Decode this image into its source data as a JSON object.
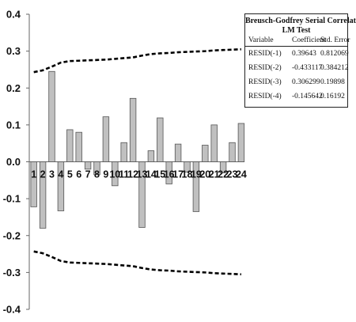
{
  "chart_data": {
    "type": "bar",
    "categories": [
      "1",
      "2",
      "3",
      "4",
      "5",
      "6",
      "7",
      "8",
      "9",
      "10",
      "11",
      "12",
      "13",
      "14",
      "15",
      "16",
      "17",
      "18",
      "19",
      "20",
      "21",
      "22",
      "23",
      "24"
    ],
    "series": [
      {
        "values": [
          -0.122,
          -0.18,
          0.245,
          -0.133,
          0.087,
          0.08,
          -0.02,
          -0.035,
          0.122,
          -0.065,
          0.052,
          0.172,
          -0.178,
          0.03,
          0.119,
          -0.06,
          0.048,
          -0.028,
          -0.135,
          0.045,
          0.1,
          -0.03,
          0.052,
          0.104
        ]
      }
    ],
    "upper_bound": [
      0.243,
      0.248,
      0.258,
      0.269,
      0.273,
      0.274,
      0.275,
      0.276,
      0.277,
      0.279,
      0.281,
      0.283,
      0.288,
      0.292,
      0.294,
      0.295,
      0.297,
      0.298,
      0.299,
      0.3,
      0.302,
      0.303,
      0.304,
      0.305
    ],
    "lower_bound": [
      -0.243,
      -0.248,
      -0.258,
      -0.269,
      -0.273,
      -0.274,
      -0.275,
      -0.276,
      -0.277,
      -0.279,
      -0.281,
      -0.283,
      -0.288,
      -0.292,
      -0.294,
      -0.295,
      -0.297,
      -0.298,
      -0.299,
      -0.3,
      -0.302,
      -0.303,
      -0.304,
      -0.305
    ],
    "ylim": [
      -0.4,
      0.4
    ],
    "yticks": [
      0.4,
      0.3,
      0.2,
      0.1,
      0.0,
      -0.1,
      -0.2,
      -0.3,
      -0.4
    ],
    "ytick_labels": [
      "0.4",
      "0.3",
      "0.2",
      "0.1",
      "0.0",
      "-0.1",
      "-0.2",
      "-0.3",
      "-0.4"
    ],
    "grid": false,
    "bar_color": "#c0c0c0",
    "bar_outline": "#555555",
    "bound_color": "#000000",
    "table": {
      "title": "Breusch-Godfrey Serial Correlation",
      "subtitle": "LM Test",
      "columns": [
        "Variable",
        "Coefficient",
        "Std. Error"
      ],
      "rows": [
        [
          "RESID(-1)",
          "0.39643",
          "0.812069"
        ],
        [
          "RESID(-2)",
          "-0.433117",
          "0.384212"
        ],
        [
          "RESID(-3)",
          "0.306299",
          "0.19898"
        ],
        [
          "RESID(-4)",
          "-0.145642",
          "0.16192"
        ]
      ]
    }
  }
}
